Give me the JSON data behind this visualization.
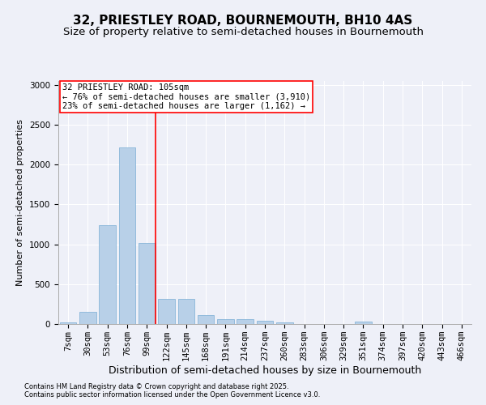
{
  "title1": "32, PRIESTLEY ROAD, BOURNEMOUTH, BH10 4AS",
  "title2": "Size of property relative to semi-detached houses in Bournemouth",
  "xlabel": "Distribution of semi-detached houses by size in Bournemouth",
  "ylabel": "Number of semi-detached properties",
  "footnote1": "Contains HM Land Registry data © Crown copyright and database right 2025.",
  "footnote2": "Contains public sector information licensed under the Open Government Licence v3.0.",
  "bar_labels": [
    "7sqm",
    "30sqm",
    "53sqm",
    "76sqm",
    "99sqm",
    "122sqm",
    "145sqm",
    "168sqm",
    "191sqm",
    "214sqm",
    "237sqm",
    "260sqm",
    "283sqm",
    "306sqm",
    "329sqm",
    "351sqm",
    "374sqm",
    "397sqm",
    "420sqm",
    "443sqm",
    "466sqm"
  ],
  "bar_values": [
    20,
    150,
    1240,
    2220,
    1020,
    320,
    320,
    110,
    60,
    60,
    40,
    20,
    0,
    0,
    0,
    30,
    0,
    0,
    0,
    0,
    0
  ],
  "bar_color": "#b8d0e8",
  "bar_edge_color": "#7aaed4",
  "vline_color": "red",
  "annotation_text": "32 PRIESTLEY ROAD: 105sqm\n← 76% of semi-detached houses are smaller (3,910)\n23% of semi-detached houses are larger (1,162) →",
  "annotation_box_color": "white",
  "annotation_box_edge": "red",
  "ylim": [
    0,
    3050
  ],
  "yticks": [
    0,
    500,
    1000,
    1500,
    2000,
    2500,
    3000
  ],
  "background_color": "#eef0f8",
  "grid_color": "white",
  "title1_fontsize": 11,
  "title2_fontsize": 9.5,
  "xlabel_fontsize": 9,
  "ylabel_fontsize": 8,
  "tick_fontsize": 7.5,
  "annotation_fontsize": 7.5,
  "footnote_fontsize": 6
}
